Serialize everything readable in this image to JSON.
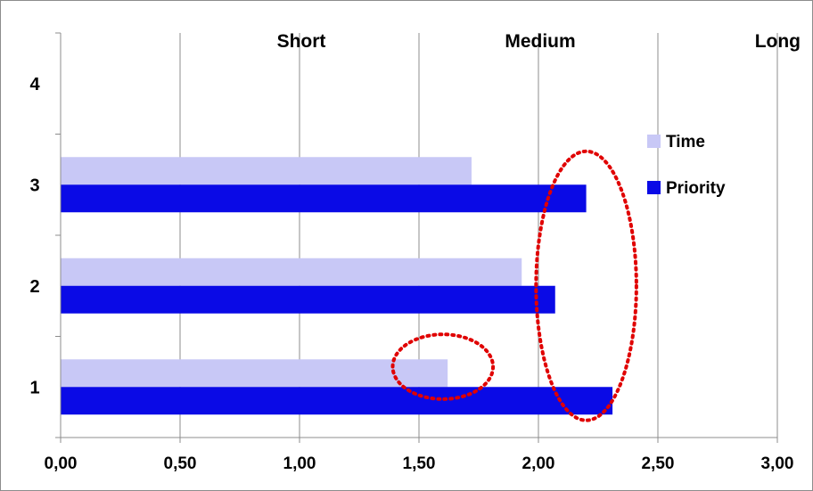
{
  "chart_data": {
    "type": "bar",
    "orientation": "horizontal",
    "categories": [
      "1",
      "2",
      "3",
      "4"
    ],
    "series": [
      {
        "name": "Time",
        "values": [
          1.62,
          1.93,
          1.72,
          null
        ],
        "color": "#c8c8f6"
      },
      {
        "name": "Priority",
        "values": [
          2.31,
          2.07,
          2.2,
          null
        ],
        "color": "#0a0ae6"
      }
    ],
    "x_ticks": [
      "0,00",
      "0,50",
      "1,00",
      "1,50",
      "2,00",
      "2,50",
      "3,00"
    ],
    "xlim": [
      0,
      3
    ],
    "grid": "vertical",
    "legend": "right",
    "top_labels": [
      {
        "text": "Short",
        "x": 1.0
      },
      {
        "text": "Medium",
        "x": 2.0
      },
      {
        "text": "Long",
        "x": 3.0
      }
    ],
    "annotations": [
      {
        "shape": "dotted-ellipse",
        "color": "#e00000",
        "cx": 1.6,
        "cy": 1.2,
        "rx": 0.21,
        "ry": 0.32
      },
      {
        "shape": "dotted-ellipse",
        "color": "#e00000",
        "cx": 2.2,
        "cy": 2.0,
        "rx": 0.21,
        "ry": 1.33
      }
    ]
  }
}
